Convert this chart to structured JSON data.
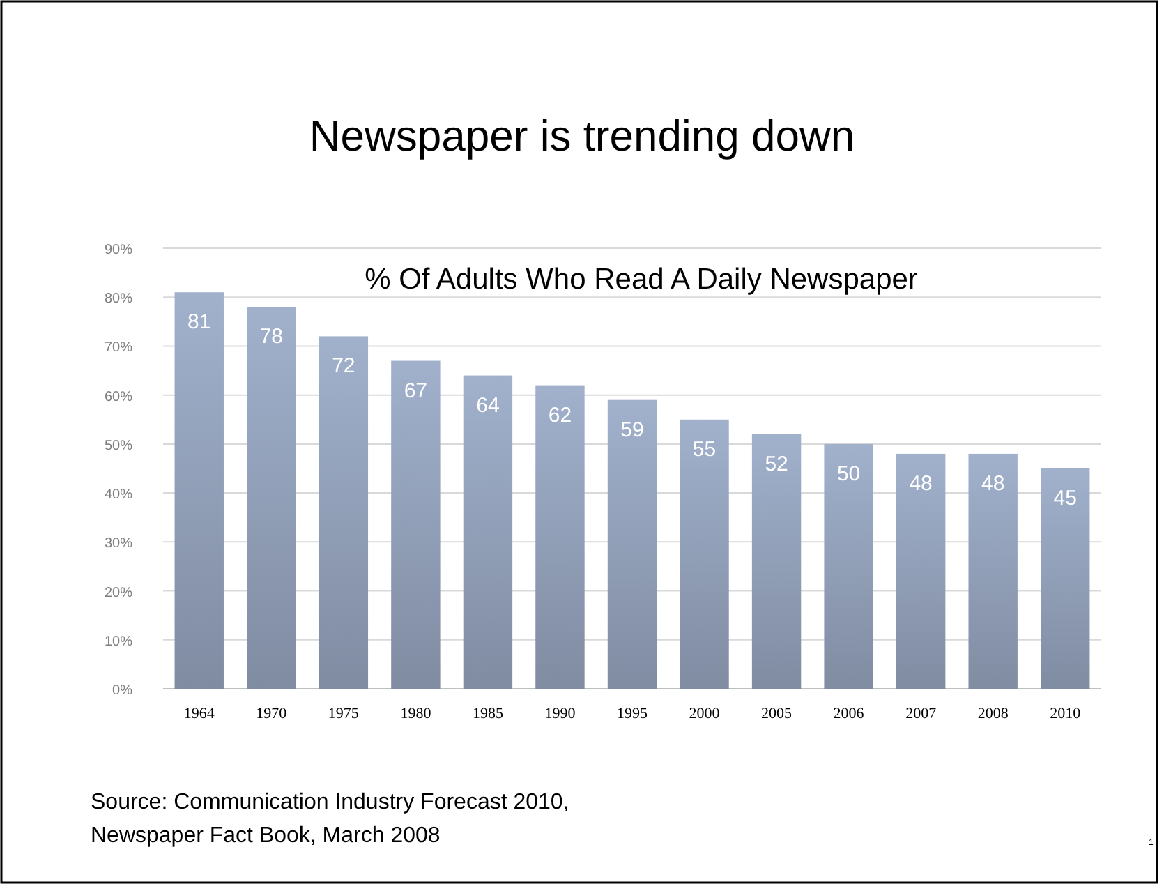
{
  "chart_data": {
    "type": "bar",
    "title": "Newspaper is trending down",
    "subtitle": "% Of Adults Who Read A Daily Newspaper",
    "categories": [
      "1964",
      "1970",
      "1975",
      "1980",
      "1985",
      "1990",
      "1995",
      "2000",
      "2005",
      "2006",
      "2007",
      "2008",
      "2010"
    ],
    "values": [
      81,
      78,
      72,
      67,
      64,
      62,
      59,
      55,
      52,
      50,
      48,
      48,
      45
    ],
    "color": "#8e9cb4",
    "ylim": [
      0,
      90
    ],
    "yticks": [
      {
        "value": 0,
        "label": "0%"
      },
      {
        "value": 10,
        "label": "10%"
      },
      {
        "value": 20,
        "label": "20%"
      },
      {
        "value": 30,
        "label": "30%"
      },
      {
        "value": 40,
        "label": "40%"
      },
      {
        "value": 50,
        "label": "50%"
      },
      {
        "value": 60,
        "label": "60%"
      },
      {
        "value": 70,
        "label": "70%"
      },
      {
        "value": 80,
        "label": "80%"
      },
      {
        "value": 90,
        "label": "90%"
      }
    ],
    "grid": "y",
    "data_labels": true,
    "annotations": [
      "Source: Communication Industry Forecast 2010,",
      "Newspaper Fact Book, March 2008",
      "1"
    ]
  }
}
